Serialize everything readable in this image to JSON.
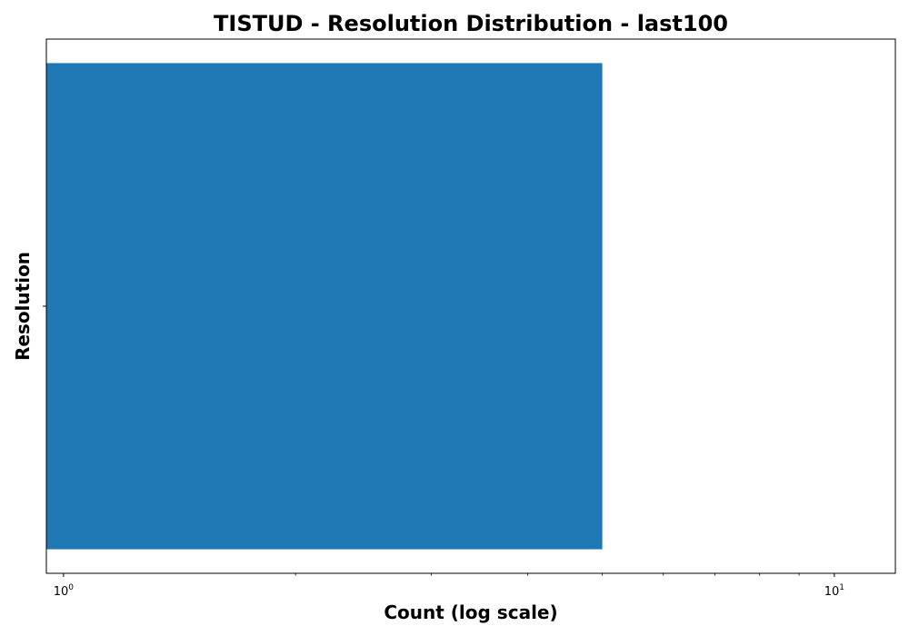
{
  "chart_data": {
    "type": "bar",
    "orientation": "horizontal",
    "title": "TISTUD - Resolution Distribution - last100",
    "xlabel": "Count (log scale)",
    "ylabel": "Resolution",
    "x_scale": "log",
    "xlim": [
      0.95,
      12
    ],
    "categories": [
      ""
    ],
    "values": [
      5
    ],
    "bar_color": "#1f77b4",
    "xticks": [
      {
        "value": 1,
        "base": "10",
        "exponent": "0"
      },
      {
        "value": 10,
        "base": "10",
        "exponent": "1"
      }
    ],
    "grid": false
  }
}
